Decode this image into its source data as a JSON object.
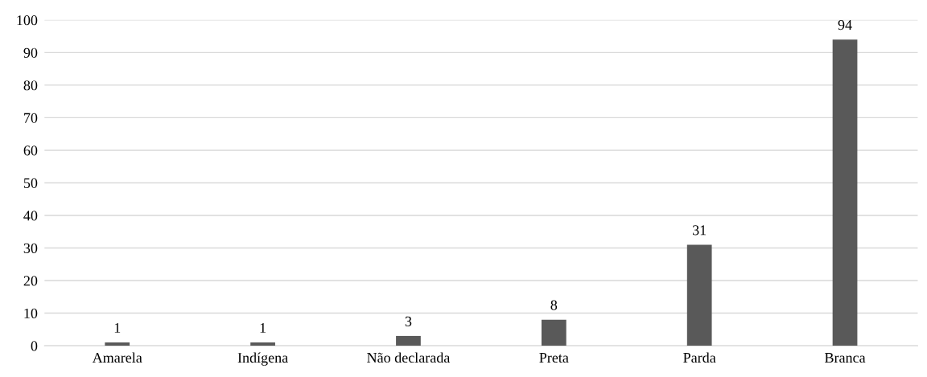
{
  "chart_data": {
    "type": "bar",
    "categories": [
      "Amarela",
      "Indígena",
      "Não declarada",
      "Preta",
      "Parda",
      "Branca"
    ],
    "values": [
      1,
      1,
      3,
      8,
      31,
      94
    ],
    "color": "#595959",
    "ylim": [
      0,
      100
    ],
    "yticks": [
      0,
      10,
      20,
      30,
      40,
      50,
      60,
      70,
      80,
      90,
      100
    ],
    "grid": "y",
    "data_labels": true
  }
}
